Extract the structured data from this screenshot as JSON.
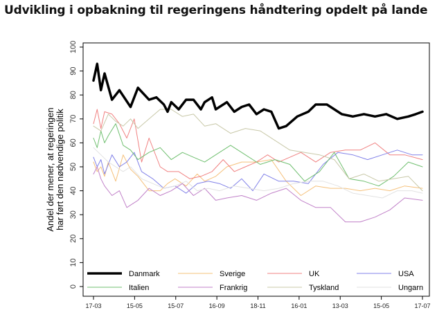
{
  "chart_data": {
    "type": "line",
    "title": "Udvikling i opbakning til regeringens håndtering opdelt på lande",
    "ylabel_line1": "Andel der mener, at regeringen",
    "ylabel_line2": "har ført den nødvendige politik",
    "xlabel": "",
    "ylim": [
      0,
      100
    ],
    "yticks": [
      "0",
      "10",
      "20",
      "30",
      "40",
      "50",
      "60",
      "70",
      "80",
      "90",
      "100"
    ],
    "xlim": [
      0,
      1
    ],
    "xticks": [
      {
        "x": 0.0,
        "label": "17-03"
      },
      {
        "x": 0.111,
        "label": "15-05"
      },
      {
        "x": 0.222,
        "label": "15-07"
      },
      {
        "x": 0.333,
        "label": "16-09"
      },
      {
        "x": 0.444,
        "label": "18-11"
      },
      {
        "x": 0.555,
        "label": "16-01"
      },
      {
        "x": 0.666,
        "label": "13-03"
      },
      {
        "x": 0.777,
        "label": "15-05"
      },
      {
        "x": 0.888,
        "label": "17-07"
      }
    ],
    "grid": false,
    "legend_position": "bottom-inside",
    "series": [
      {
        "name": "Danmark",
        "color": "#000000",
        "width": 3.5,
        "x": [
          0.0,
          0.01,
          0.02,
          0.03,
          0.05,
          0.07,
          0.1,
          0.12,
          0.15,
          0.17,
          0.19,
          0.2,
          0.21,
          0.23,
          0.25,
          0.27,
          0.29,
          0.3,
          0.32,
          0.33,
          0.36,
          0.38,
          0.4,
          0.42,
          0.44,
          0.46,
          0.48,
          0.5,
          0.52,
          0.55,
          0.58,
          0.6,
          0.63,
          0.67,
          0.7,
          0.73,
          0.76,
          0.79,
          0.82,
          0.85,
          0.87,
          0.888
        ],
        "y": [
          86,
          93,
          82,
          89,
          78,
          82,
          75,
          83,
          78,
          79,
          76,
          73,
          77,
          74,
          78,
          78,
          74,
          77,
          79,
          74,
          77,
          73,
          75,
          76,
          72,
          74,
          73,
          66,
          67,
          71,
          73,
          76,
          76,
          72,
          71,
          72,
          71,
          72,
          70,
          71,
          72,
          73
        ]
      },
      {
        "name": "Sverige",
        "color": "#f5c07a",
        "width": 1,
        "x": [
          0.0,
          0.01,
          0.02,
          0.03,
          0.04,
          0.06,
          0.08,
          0.1,
          0.12,
          0.15,
          0.18,
          0.2,
          0.22,
          0.25,
          0.28,
          0.3,
          0.33,
          0.36,
          0.4,
          0.44,
          0.48,
          0.52,
          0.56,
          0.6,
          0.64,
          0.68,
          0.72,
          0.76,
          0.8,
          0.84,
          0.888
        ],
        "y": [
          52,
          48,
          50,
          46,
          52,
          44,
          55,
          49,
          46,
          40,
          40,
          43,
          45,
          42,
          47,
          44,
          46,
          50,
          52,
          52,
          53,
          44,
          38,
          42,
          41,
          41,
          40,
          41,
          40,
          42,
          41
        ]
      },
      {
        "name": "UK",
        "color": "#f08080",
        "width": 1,
        "x": [
          0.0,
          0.01,
          0.02,
          0.03,
          0.05,
          0.07,
          0.09,
          0.11,
          0.13,
          0.15,
          0.18,
          0.2,
          0.23,
          0.26,
          0.29,
          0.32,
          0.35,
          0.38,
          0.41,
          0.44,
          0.47,
          0.5,
          0.53,
          0.56,
          0.6,
          0.64,
          0.68,
          0.72,
          0.76,
          0.8,
          0.84,
          0.888
        ],
        "y": [
          68,
          74,
          66,
          73,
          72,
          68,
          62,
          70,
          52,
          62,
          50,
          48,
          48,
          45,
          46,
          48,
          53,
          48,
          50,
          52,
          55,
          52,
          54,
          56,
          52,
          56,
          57,
          57,
          60,
          55,
          55,
          53
        ]
      },
      {
        "name": "USA",
        "color": "#8080e8",
        "width": 1,
        "x": [
          0.0,
          0.01,
          0.02,
          0.03,
          0.05,
          0.07,
          0.09,
          0.11,
          0.13,
          0.16,
          0.19,
          0.22,
          0.25,
          0.28,
          0.31,
          0.34,
          0.37,
          0.4,
          0.43,
          0.46,
          0.5,
          0.54,
          0.58,
          0.62,
          0.66,
          0.7,
          0.74,
          0.78,
          0.82,
          0.86,
          0.888
        ],
        "y": [
          54,
          50,
          53,
          47,
          55,
          50,
          52,
          56,
          48,
          45,
          41,
          42,
          39,
          43,
          44,
          43,
          41,
          45,
          40,
          47,
          44,
          44,
          43,
          51,
          56,
          55,
          53,
          55,
          57,
          55,
          55
        ]
      },
      {
        "name": "Italien",
        "color": "#6fbf6f",
        "width": 1,
        "x": [
          0.0,
          0.01,
          0.02,
          0.03,
          0.04,
          0.06,
          0.08,
          0.1,
          0.12,
          0.15,
          0.18,
          0.21,
          0.24,
          0.27,
          0.3,
          0.33,
          0.37,
          0.41,
          0.45,
          0.49,
          0.53,
          0.57,
          0.61,
          0.65,
          0.69,
          0.73,
          0.77,
          0.81,
          0.85,
          0.888
        ],
        "y": [
          62,
          58,
          65,
          60,
          63,
          68,
          59,
          57,
          53,
          56,
          58,
          53,
          56,
          54,
          52,
          55,
          59,
          55,
          51,
          53,
          51,
          44,
          48,
          56,
          45,
          44,
          42,
          46,
          52,
          50
        ]
      },
      {
        "name": "Frankrig",
        "color": "#c080c8",
        "width": 1,
        "x": [
          0.0,
          0.01,
          0.02,
          0.03,
          0.05,
          0.07,
          0.09,
          0.12,
          0.15,
          0.18,
          0.21,
          0.24,
          0.27,
          0.3,
          0.33,
          0.36,
          0.4,
          0.44,
          0.48,
          0.52,
          0.56,
          0.6,
          0.64,
          0.68,
          0.72,
          0.76,
          0.8,
          0.84,
          0.888
        ],
        "y": [
          47,
          50,
          45,
          42,
          38,
          40,
          33,
          36,
          41,
          38,
          40,
          43,
          38,
          41,
          36,
          37,
          38,
          36,
          39,
          41,
          36,
          33,
          33,
          27,
          27,
          29,
          32,
          37,
          36
        ]
      },
      {
        "name": "Tyskland",
        "color": "#c8c8a8",
        "width": 1,
        "x": [
          0.0,
          0.02,
          0.04,
          0.06,
          0.08,
          0.1,
          0.12,
          0.15,
          0.18,
          0.21,
          0.24,
          0.27,
          0.3,
          0.33,
          0.37,
          0.41,
          0.45,
          0.49,
          0.53,
          0.57,
          0.61,
          0.65,
          0.69,
          0.73,
          0.77,
          0.81,
          0.85,
          0.888
        ],
        "y": [
          67,
          65,
          72,
          69,
          67,
          70,
          66,
          70,
          74,
          74,
          71,
          72,
          67,
          68,
          64,
          66,
          65,
          61,
          57,
          56,
          55,
          53,
          45,
          47,
          44,
          45,
          46,
          40
        ]
      },
      {
        "name": "Ungarn",
        "color": "#e2e2e2",
        "width": 1,
        "x": [
          0.0,
          0.02,
          0.04,
          0.06,
          0.08,
          0.1,
          0.13,
          0.16,
          0.19,
          0.22,
          0.25,
          0.28,
          0.31,
          0.34,
          0.38,
          0.42,
          0.46,
          0.5,
          0.54,
          0.58,
          0.62,
          0.66,
          0.7,
          0.74,
          0.78,
          0.82,
          0.86,
          0.888
        ],
        "y": [
          58,
          55,
          52,
          50,
          48,
          50,
          45,
          43,
          41,
          42,
          44,
          40,
          41,
          40,
          42,
          41,
          40,
          41,
          43,
          44,
          44,
          42,
          39,
          38,
          37,
          40,
          40,
          39
        ]
      }
    ]
  }
}
